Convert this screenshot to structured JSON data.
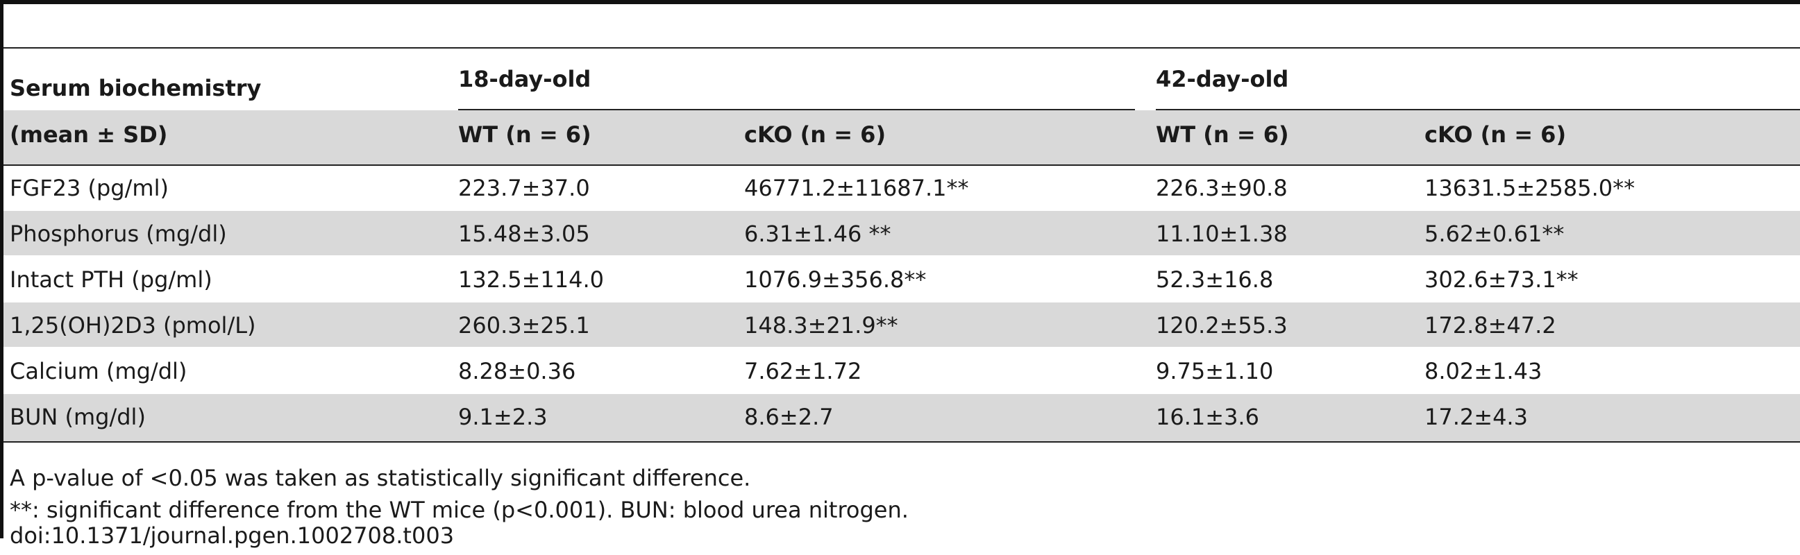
{
  "header": {
    "col0_line1": "Serum biochemistry",
    "col0_line2": "(mean ± SD)",
    "group1": "18-day-old",
    "group2": "42-day-old",
    "sub": [
      "WT (n = 6)",
      "cKO (n = 6)",
      "WT (n = 6)",
      "cKO (n = 6)"
    ]
  },
  "rows": [
    {
      "label": "FGF23 (pg/ml)",
      "v": [
        "223.7±37.0",
        "46771.2±11687.1**",
        "226.3±90.8",
        "13631.5±2585.0**"
      ]
    },
    {
      "label": "Phosphorus (mg/dl)",
      "v": [
        "15.48±3.05",
        "6.31±1.46 **",
        "11.10±1.38",
        "5.62±0.61**"
      ]
    },
    {
      "label": "Intact PTH (pg/ml)",
      "v": [
        "132.5±114.0",
        "1076.9±356.8**",
        "52.3±16.8",
        "302.6±73.1**"
      ]
    },
    {
      "label": "1,25(OH)2D3 (pmol/L)",
      "v": [
        "260.3±25.1",
        "148.3±21.9**",
        "120.2±55.3",
        "172.8±47.2"
      ]
    },
    {
      "label": "Calcium (mg/dl)",
      "v": [
        "8.28±0.36",
        "7.62±1.72",
        "9.75±1.10",
        "8.02±1.43"
      ]
    },
    {
      "label": "BUN (mg/dl)",
      "v": [
        "9.1±2.3",
        "8.6±2.7",
        "16.1±3.6",
        "17.2±4.3"
      ]
    }
  ],
  "footnotes": [
    "A p-value of <0.05 was taken as statistically significant difference.",
    "**: significant difference from the WT mice (p<0.001). BUN: blood urea nitrogen.",
    "doi:10.1371/journal.pgen.1002708.t003"
  ]
}
